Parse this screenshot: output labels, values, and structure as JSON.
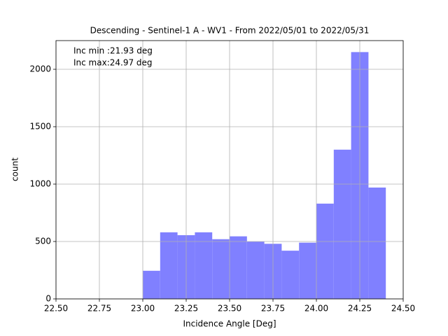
{
  "chart_data": {
    "type": "histogram",
    "title": "Descending - Sentinel-1 A - WV1 - From 2022/05/01 to 2022/05/31",
    "xlabel": "Incidence Angle [Deg]",
    "ylabel": "count",
    "annotations": [
      "Inc min :21.93 deg",
      "Inc max:24.97 deg"
    ],
    "bins": [
      23.0,
      23.1,
      23.2,
      23.3,
      23.4,
      23.5,
      23.6,
      23.7,
      23.8,
      23.9,
      24.0,
      24.1,
      24.2,
      24.3,
      24.4
    ],
    "values": [
      245,
      580,
      555,
      580,
      520,
      545,
      500,
      480,
      420,
      490,
      830,
      1300,
      2150,
      970
    ],
    "color": "#8080ff",
    "xlim": [
      22.5,
      24.5
    ],
    "xticks": [
      {
        "value": 22.5,
        "label": "22.50"
      },
      {
        "value": 22.75,
        "label": "22.75"
      },
      {
        "value": 23.0,
        "label": "23.00"
      },
      {
        "value": 23.25,
        "label": "23.25"
      },
      {
        "value": 23.5,
        "label": "23.50"
      },
      {
        "value": 23.75,
        "label": "23.75"
      },
      {
        "value": 24.0,
        "label": "24.00"
      },
      {
        "value": 24.25,
        "label": "24.25"
      },
      {
        "value": 24.5,
        "label": "24.50"
      }
    ],
    "ylim": [
      0,
      2250
    ],
    "yticks": [
      0,
      500,
      1000,
      1500,
      2000
    ],
    "grid": true
  }
}
